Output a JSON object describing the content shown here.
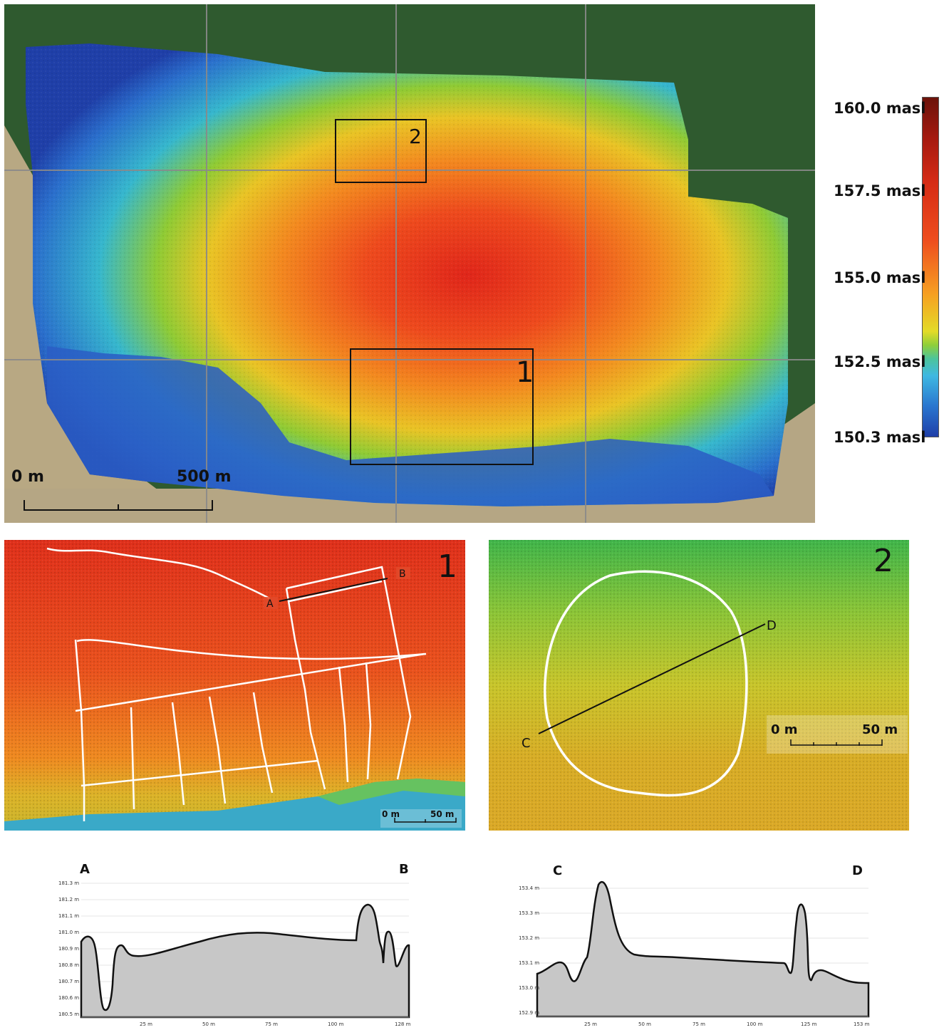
{
  "main_map": {
    "box_labels": [
      "2",
      "1"
    ],
    "scale": {
      "zero": "0 m",
      "end": "500 m"
    }
  },
  "legend": {
    "labels": [
      "160.0 masl",
      "157.5 masl",
      "155.0 masl",
      "152.5 masl",
      "150.3 masl"
    ],
    "colors": [
      "#1f3fa8",
      "#3fb8e2",
      "#8fcf3a",
      "#e3db28",
      "#ee4d1e",
      "#a51a10"
    ]
  },
  "inset1": {
    "panel_label": "1",
    "point_a": "A",
    "point_b": "B",
    "scale": {
      "zero": "0 m",
      "end": "50 m"
    }
  },
  "inset2": {
    "panel_label": "2",
    "point_c": "C",
    "point_d": "D",
    "scale": {
      "zero": "0 m",
      "end": "50 m"
    }
  },
  "profile_ab": {
    "start_label": "A",
    "end_label": "B",
    "y_ticks": [
      "181.3 m",
      "181.2 m",
      "181.1 m",
      "181.0 m",
      "180.9 m",
      "180.8 m",
      "180.7 m",
      "180.6 m",
      "180.5 m"
    ],
    "x_ticks": [
      "25 m",
      "50 m",
      "75 m",
      "100 m",
      "128 m"
    ]
  },
  "profile_cd": {
    "start_label": "C",
    "end_label": "D",
    "y_ticks": [
      "153.4 m",
      "153.3 m",
      "153.2 m",
      "153.1 m",
      "153.0 m",
      "152.9 m"
    ],
    "x_ticks": [
      "25 m",
      "50 m",
      "75 m",
      "100 m",
      "125 m",
      "153 m"
    ]
  }
}
